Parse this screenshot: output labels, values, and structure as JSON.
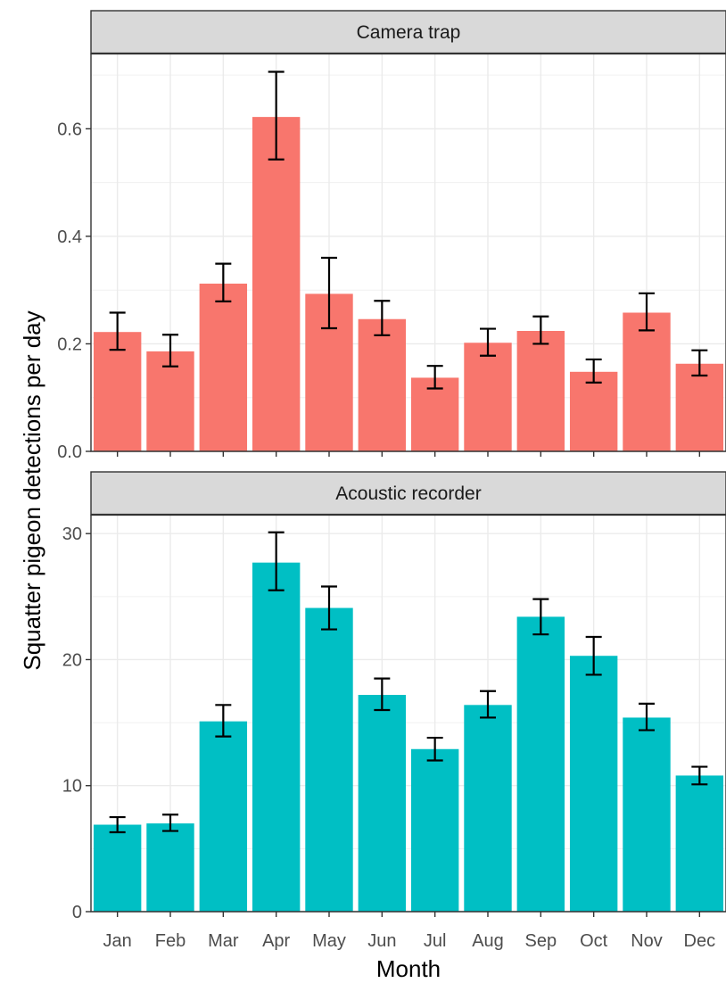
{
  "chart_data": {
    "type": "bar",
    "xlabel": "Month",
    "ylabel": "Squatter pigeon detections per day",
    "categories": [
      "Jan",
      "Feb",
      "Mar",
      "Apr",
      "May",
      "Jun",
      "Jul",
      "Aug",
      "Sep",
      "Oct",
      "Nov",
      "Dec"
    ],
    "grid": true,
    "panels": [
      {
        "title": "Camera trap",
        "color": "#F8766D",
        "ylim": [
          0,
          0.74
        ],
        "yticks": [
          0.0,
          0.2,
          0.4,
          0.6
        ],
        "ytick_labels": [
          "0.0",
          "0.2",
          "0.4",
          "0.6"
        ],
        "values": [
          0.222,
          0.186,
          0.312,
          0.622,
          0.293,
          0.246,
          0.137,
          0.202,
          0.224,
          0.148,
          0.258,
          0.163
        ],
        "error_low": [
          0.189,
          0.158,
          0.279,
          0.543,
          0.229,
          0.216,
          0.117,
          0.178,
          0.2,
          0.128,
          0.225,
          0.141
        ],
        "error_high": [
          0.258,
          0.217,
          0.349,
          0.706,
          0.36,
          0.28,
          0.159,
          0.228,
          0.251,
          0.171,
          0.294,
          0.188
        ]
      },
      {
        "title": "Acoustic recorder",
        "color": "#00BFC4",
        "ylim": [
          0,
          31.5
        ],
        "yticks": [
          0,
          10,
          20,
          30
        ],
        "ytick_labels": [
          "0",
          "10",
          "20",
          "30"
        ],
        "values": [
          6.9,
          7.0,
          15.1,
          27.7,
          24.1,
          17.2,
          12.9,
          16.4,
          23.4,
          20.3,
          15.4,
          10.8
        ],
        "error_low": [
          6.3,
          6.4,
          13.9,
          25.5,
          22.4,
          16.0,
          12.0,
          15.4,
          22.0,
          18.8,
          14.4,
          10.1
        ],
        "error_high": [
          7.5,
          7.7,
          16.4,
          30.1,
          25.8,
          18.5,
          13.8,
          17.5,
          24.8,
          21.8,
          16.5,
          11.5
        ]
      }
    ]
  }
}
